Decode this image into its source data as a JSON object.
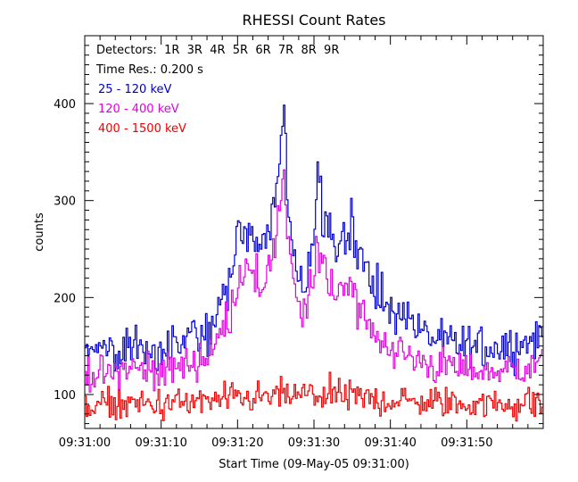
{
  "chart_data": {
    "type": "line",
    "title": "RHESSI Count Rates",
    "xlabel": "Start Time (09-May-05 09:31:00)",
    "ylabel": "counts",
    "x_unit": "seconds after 09:31:00",
    "xlim": [
      0,
      60
    ],
    "ylim": [
      65,
      470
    ],
    "x_tick_values": [
      0,
      10,
      20,
      30,
      40,
      50
    ],
    "x_tick_labels": [
      "09:31:00",
      "09:31:10",
      "09:31:20",
      "09:31:30",
      "09:31:40",
      "09:31:50"
    ],
    "y_tick_values": [
      100,
      200,
      300,
      400
    ],
    "y_tick_labels": [
      "100",
      "200",
      "300",
      "400"
    ],
    "annotations": {
      "detectors": "Detectors:  1R  3R  4R  5R  6R  7R  8R  9R",
      "time_res": "Time Res.: 0.200 s"
    },
    "grid": false,
    "legend_placement": "top-left",
    "time_resolution_s": 0.2,
    "series": [
      {
        "name": "25 - 120 keV",
        "color": "#0000cc",
        "x": [
          0,
          2,
          4,
          6,
          8,
          10,
          12,
          14,
          16,
          17,
          18,
          19,
          20,
          21,
          22,
          23,
          24,
          25,
          25.5,
          26,
          26.5,
          27,
          28,
          29,
          30,
          30.5,
          31,
          32,
          33,
          34,
          35,
          36,
          37,
          38,
          39,
          40,
          42,
          44,
          46,
          48,
          50,
          52,
          54,
          56,
          58,
          60
        ],
        "values": [
          150,
          145,
          150,
          155,
          150,
          148,
          152,
          158,
          165,
          175,
          195,
          215,
          250,
          280,
          255,
          240,
          280,
          300,
          355,
          385,
          310,
          260,
          220,
          215,
          260,
          330,
          305,
          270,
          255,
          270,
          275,
          240,
          225,
          205,
          195,
          190,
          180,
          165,
          155,
          152,
          150,
          148,
          150,
          152,
          155,
          160
        ]
      },
      {
        "name": "120 - 400 keV",
        "color": "#e000e0",
        "x": [
          0,
          2,
          4,
          6,
          8,
          10,
          12,
          14,
          16,
          17,
          18,
          19,
          20,
          21,
          22,
          23,
          24,
          25,
          25.5,
          26,
          26.5,
          27,
          28,
          29,
          30,
          30.5,
          31,
          32,
          33,
          34,
          35,
          36,
          37,
          38,
          39,
          40,
          42,
          44,
          46,
          48,
          50,
          52,
          54,
          56,
          58,
          60
        ],
        "values": [
          125,
          120,
          122,
          128,
          125,
          125,
          128,
          132,
          140,
          150,
          165,
          185,
          215,
          240,
          215,
          205,
          235,
          255,
          300,
          315,
          270,
          225,
          190,
          185,
          215,
          260,
          245,
          215,
          205,
          220,
          215,
          190,
          170,
          158,
          155,
          150,
          140,
          135,
          130,
          128,
          125,
          125,
          124,
          126,
          130,
          132
        ]
      },
      {
        "name": "400 - 1500 keV",
        "color": "#ee0000",
        "x": [
          0,
          5,
          10,
          15,
          20,
          25,
          30,
          35,
          40,
          45,
          50,
          55,
          60
        ],
        "values": [
          88,
          90,
          90,
          92,
          95,
          98,
          100,
          97,
          94,
          92,
          91,
          90,
          92
        ]
      }
    ]
  }
}
